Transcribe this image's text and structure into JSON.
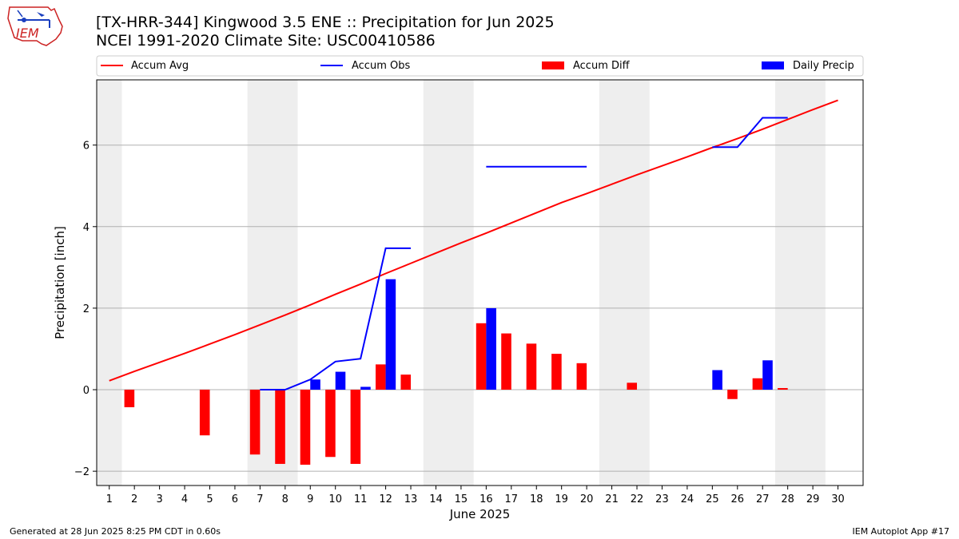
{
  "header": {
    "title_line1": "[TX-HRR-344] Kingwood 3.5 ENE :: Precipitation for Jun 2025",
    "title_line2": "NCEI 1991-2020 Climate Site: USC00410586",
    "logo_text": "IEM"
  },
  "footer": {
    "left": "Generated at 28 Jun 2025 8:25 PM CDT in 0.60s",
    "right": "IEM Autoplot App #17"
  },
  "colors": {
    "avg": "#ff0000",
    "obs": "#0000ff",
    "diff": "#ff0000",
    "daily": "#0000ff",
    "weekend": "#eeeeee",
    "grid": "#b0b0b0"
  },
  "chart_data": {
    "type": "bar",
    "xlabel": "June 2025",
    "ylabel": "Precipitation [inch]",
    "xlim": [
      0.5,
      31.0
    ],
    "ylim": [
      -2.35,
      7.6
    ],
    "yticks": [
      -2,
      0,
      2,
      4,
      6
    ],
    "ytick_labels": [
      "−2",
      "0",
      "2",
      "4",
      "6"
    ],
    "x_ticks": [
      "1",
      "2",
      "3",
      "4",
      "5",
      "6",
      "7",
      "8",
      "9",
      "10",
      "11",
      "12",
      "13",
      "14",
      "15",
      "16",
      "17",
      "18",
      "19",
      "20",
      "21",
      "22",
      "23",
      "24",
      "25",
      "26",
      "27",
      "28",
      "29",
      "30"
    ],
    "grid": true,
    "legend_position": "top",
    "weekend_bands": [
      [
        0.5,
        1.5
      ],
      [
        6.5,
        8.5
      ],
      [
        13.5,
        15.5
      ],
      [
        20.5,
        22.5
      ],
      [
        27.5,
        29.5
      ]
    ],
    "legend": [
      {
        "label": "Accum Avg",
        "kind": "line",
        "color": "#ff0000"
      },
      {
        "label": "Accum Obs",
        "kind": "line",
        "color": "#0000ff"
      },
      {
        "label": "Accum Diff",
        "kind": "bar",
        "color": "#ff0000"
      },
      {
        "label": "Daily Precip",
        "kind": "bar",
        "color": "#0000ff"
      }
    ],
    "accum_avg": {
      "x": [
        1,
        2,
        3,
        4,
        5,
        6,
        7,
        8,
        9,
        10,
        11,
        12,
        13,
        14,
        15,
        16,
        17,
        18,
        19,
        20,
        21,
        22,
        23,
        24,
        25,
        26,
        27,
        28,
        29,
        30
      ],
      "y": [
        0.22,
        0.45,
        0.67,
        0.89,
        1.12,
        1.35,
        1.59,
        1.83,
        2.08,
        2.34,
        2.59,
        2.85,
        3.1,
        3.35,
        3.6,
        3.84,
        4.09,
        4.34,
        4.59,
        4.81,
        5.04,
        5.27,
        5.49,
        5.71,
        5.94,
        6.16,
        6.39,
        6.63,
        6.87,
        7.1
      ]
    },
    "accum_obs_segments": [
      {
        "x": [
          7,
          8,
          9,
          10,
          11,
          12,
          13
        ],
        "y": [
          0.0,
          0.0,
          0.25,
          0.69,
          0.76,
          3.47,
          3.47
        ]
      },
      {
        "x": [
          16,
          17,
          18,
          19,
          20
        ],
        "y": [
          5.47,
          5.47,
          5.47,
          5.47,
          5.47
        ]
      },
      {
        "x": [
          25,
          26,
          27,
          28
        ],
        "y": [
          5.95,
          5.95,
          6.67,
          6.67
        ]
      }
    ],
    "accum_diff": {
      "x": [
        2,
        5,
        7,
        8,
        9,
        10,
        11,
        12,
        13,
        16,
        17,
        18,
        19,
        20,
        22,
        26,
        27,
        28
      ],
      "y": [
        -0.43,
        -1.12,
        -1.59,
        -1.82,
        -1.84,
        -1.65,
        -1.82,
        0.62,
        0.37,
        1.63,
        1.38,
        1.13,
        0.88,
        0.65,
        0.17,
        -0.23,
        0.28,
        0.04
      ]
    },
    "daily_precip": {
      "x": [
        9,
        10,
        11,
        12,
        16,
        25,
        27
      ],
      "y": [
        0.25,
        0.44,
        0.07,
        2.71,
        2.0,
        0.48,
        0.72
      ]
    }
  }
}
